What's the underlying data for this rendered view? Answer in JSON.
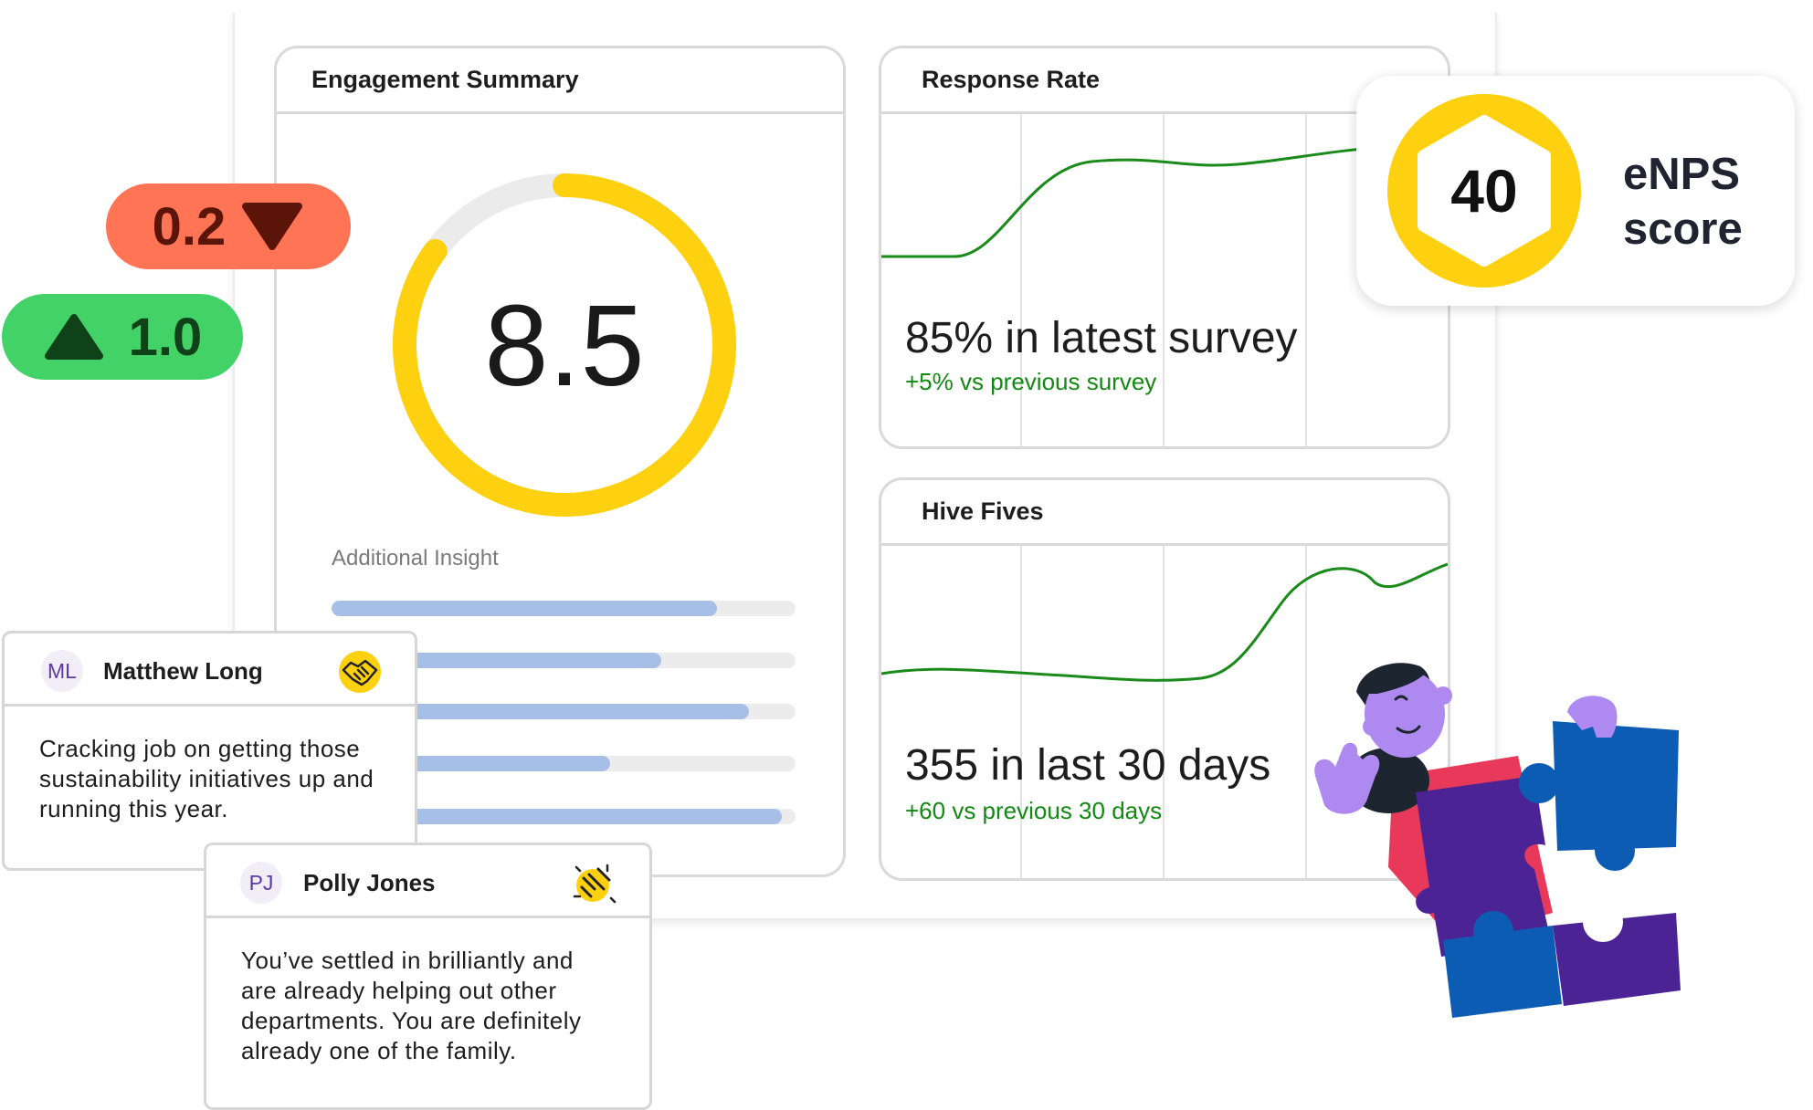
{
  "engagement": {
    "title": "Engagement Summary",
    "score": "8.5",
    "score_value": 8.5,
    "score_max": 10,
    "insight_label": "Additional Insight",
    "insight_bars": [
      0.83,
      0.71,
      0.9,
      0.6,
      0.97
    ],
    "colors": {
      "ring": "#fdd10f",
      "track": "#ebebeb",
      "bar": "#a7bfe6"
    }
  },
  "response_rate": {
    "title": "Response Rate",
    "stat": "85% in latest survey",
    "sub": "+5% vs previous survey"
  },
  "hive_fives": {
    "title": "Hive Fives",
    "stat": "355 in last 30 days",
    "sub": "+60 vs previous 30 days"
  },
  "enps": {
    "score": "40",
    "label_line1": "eNPS",
    "label_line2": "score",
    "color": "#fdd10f"
  },
  "changes": {
    "down": {
      "value": "0.2",
      "icon": "triangle-down-icon",
      "color": "#ff7455"
    },
    "up": {
      "value": "1.0",
      "icon": "triangle-up-icon",
      "color": "#43d267"
    }
  },
  "comments": [
    {
      "initials": "ML",
      "name": "Matthew Long",
      "icon": "handshake-icon",
      "text": "Cracking job on getting those sustainability initiatives up and running this year."
    },
    {
      "initials": "PJ",
      "name": "Polly Jones",
      "icon": "plug-connect-icon",
      "text": "You’ve settled in brilliantly and are already helping out other departments. You are definitely already one of the family."
    }
  ],
  "illustration": {
    "icon": "person-with-puzzle-illustration"
  }
}
